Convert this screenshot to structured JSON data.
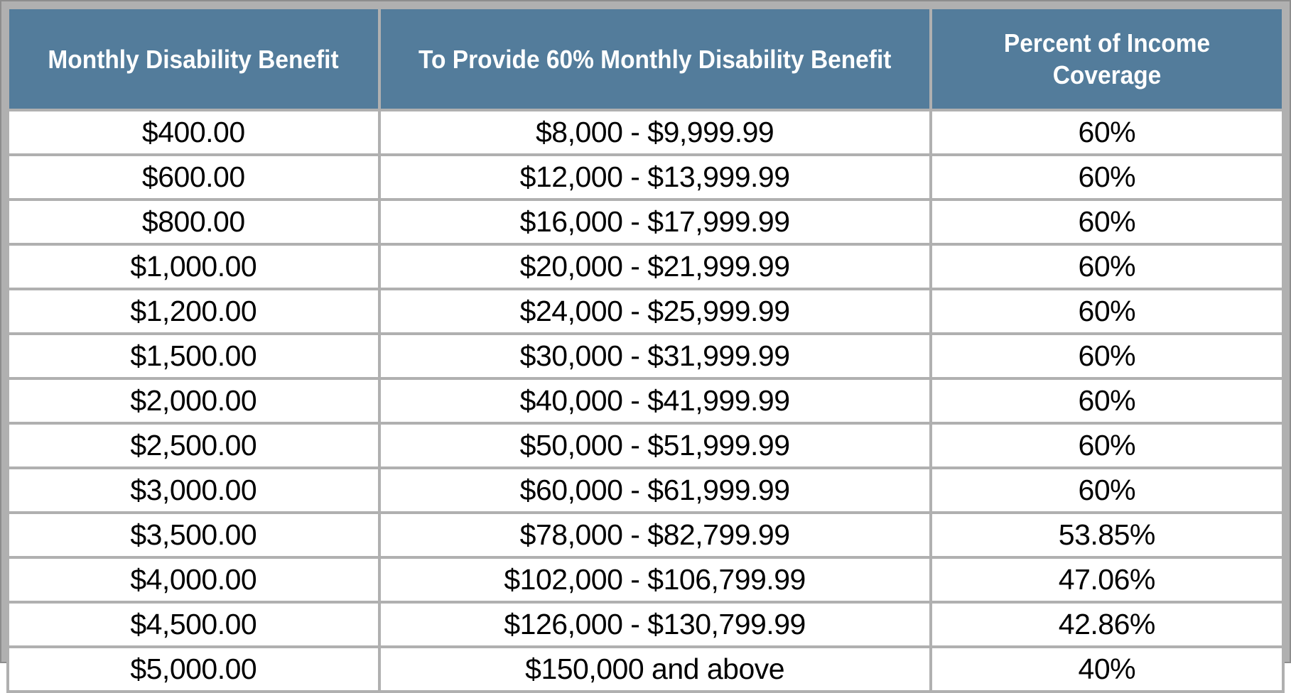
{
  "chart_data": {
    "type": "table",
    "title": "",
    "columns": [
      "Monthly Disability Benefit",
      "To Provide 60% Monthly Disability Benefit",
      "Percent of Income Coverage"
    ],
    "rows": [
      [
        "$400.00",
        "$8,000 - $9,999.99",
        "60%"
      ],
      [
        "$600.00",
        "$12,000 - $13,999.99",
        "60%"
      ],
      [
        "$800.00",
        "$16,000 - $17,999.99",
        "60%"
      ],
      [
        "$1,000.00",
        "$20,000 - $21,999.99",
        "60%"
      ],
      [
        "$1,200.00",
        "$24,000 - $25,999.99",
        "60%"
      ],
      [
        "$1,500.00",
        "$30,000 - $31,999.99",
        "60%"
      ],
      [
        "$2,000.00",
        "$40,000 - $41,999.99",
        "60%"
      ],
      [
        "$2,500.00",
        "$50,000 - $51,999.99",
        "60%"
      ],
      [
        "$3,000.00",
        "$60,000 - $61,999.99",
        "60%"
      ],
      [
        "$3,500.00",
        "$78,000 - $82,799.99",
        "53.85%"
      ],
      [
        "$4,000.00",
        "$102,000 - $106,799.99",
        "47.06%"
      ],
      [
        "$4,500.00",
        "$126,000 - $130,799.99",
        "42.86%"
      ],
      [
        "$5,000.00",
        "$150,000 and above",
        "40%"
      ]
    ],
    "layout": {
      "header_position": "top",
      "grid": true,
      "cell_alignment": "center"
    }
  },
  "colors": {
    "header_bg": "#537C9B",
    "header_text": "#FFFFFF",
    "grid": "#B0B0B0",
    "frame_outer_edge": "#8D8D8D",
    "cell_bg": "#FFFFFF",
    "cell_text": "#000000"
  }
}
